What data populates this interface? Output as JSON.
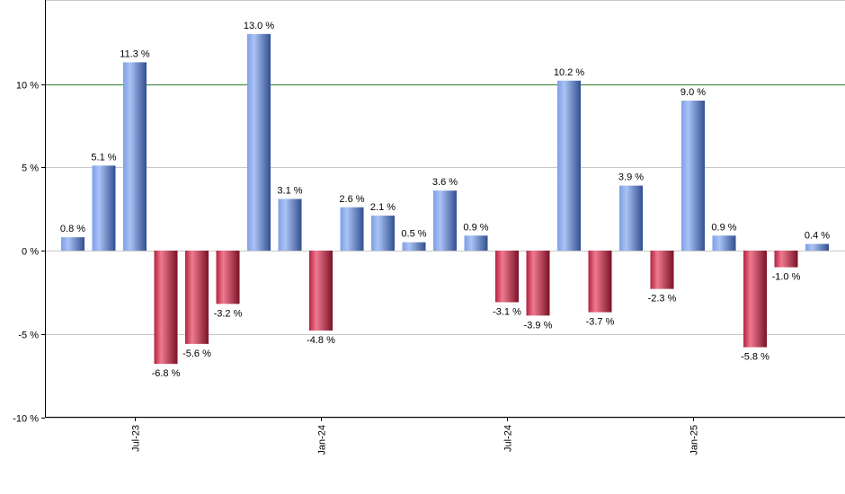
{
  "chart_data": {
    "type": "bar",
    "title": "",
    "xlabel": "",
    "ylabel": "",
    "ylim": [
      -10,
      14.3
    ],
    "y_ticks": [
      {
        "value": 10,
        "label": "10 %"
      },
      {
        "value": 5,
        "label": "5 %"
      },
      {
        "value": 0,
        "label": "0 %"
      },
      {
        "value": -5,
        "label": "-5 %"
      },
      {
        "value": -10,
        "label": "-10 %"
      }
    ],
    "x_labels": [
      {
        "index": 2,
        "label": "Jul-23"
      },
      {
        "index": 8,
        "label": "Jan-24"
      },
      {
        "index": 14,
        "label": "Jul-24"
      },
      {
        "index": 20,
        "label": "Jan-25"
      }
    ],
    "reference_line": {
      "value": 10,
      "color": "#2e7d32"
    },
    "grid": true,
    "colors": {
      "positive": "#5b7fd8",
      "negative": "#c8304f"
    },
    "values": [
      0.8,
      5.1,
      11.3,
      -6.8,
      -5.6,
      -3.2,
      13.0,
      3.1,
      -4.8,
      2.6,
      2.1,
      0.5,
      3.6,
      0.9,
      -3.1,
      -3.9,
      10.2,
      -3.7,
      3.9,
      -2.3,
      9.0,
      0.9,
      -5.8,
      -1.0,
      0.4
    ],
    "data_labels": [
      "0.8 %",
      "5.1 %",
      "11.3 %",
      "-6.8 %",
      "-5.6 %",
      "-3.2 %",
      "13.0 %",
      "3.1 %",
      "-4.8 %",
      "2.6 %",
      "2.1 %",
      "0.5 %",
      "3.6 %",
      "0.9 %",
      "-3.1 %",
      "-3.9 %",
      "10.2 %",
      "-3.7 %",
      "3.9 %",
      "-2.3 %",
      "9.0 %",
      "0.9 %",
      "-5.8 %",
      "-1.0 %",
      "0.4 %"
    ]
  }
}
